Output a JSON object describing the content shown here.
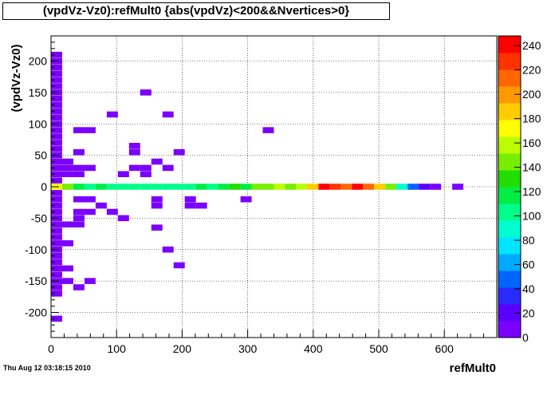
{
  "chart_data": {
    "type": "heatmap",
    "title": "(vpdVz-Vz0):refMult0 {abs(vpdVz)<200&&Nvertices>0}",
    "xlabel": "refMult0",
    "ylabel": "(vpdVz-Vz0)",
    "xlim": [
      0,
      680
    ],
    "ylim": [
      -240,
      240
    ],
    "x_ticks": [
      0,
      100,
      200,
      300,
      400,
      500,
      600
    ],
    "y_ticks": [
      -200,
      -150,
      -100,
      -50,
      0,
      50,
      100,
      150,
      200
    ],
    "z_ticks": [
      0,
      20,
      40,
      60,
      80,
      100,
      120,
      140,
      160,
      180,
      200,
      220,
      240
    ],
    "zlim": [
      0,
      248
    ],
    "grid": true,
    "legend": "right",
    "bin_width_x": 17,
    "bin_height_y": 9.6,
    "cells": [
      {
        "x": 0,
        "y": 210,
        "z": 1
      },
      {
        "x": 0,
        "y": 200,
        "z": 1
      },
      {
        "x": 0,
        "y": 190,
        "z": 1
      },
      {
        "x": 0,
        "y": 180,
        "z": 1
      },
      {
        "x": 0,
        "y": 170,
        "z": 1
      },
      {
        "x": 0,
        "y": 160,
        "z": 1
      },
      {
        "x": 0,
        "y": 150,
        "z": 1
      },
      {
        "x": 0,
        "y": 140,
        "z": 1
      },
      {
        "x": 0,
        "y": 130,
        "z": 1
      },
      {
        "x": 0,
        "y": 120,
        "z": 1
      },
      {
        "x": 0,
        "y": 110,
        "z": 1
      },
      {
        "x": 0,
        "y": 100,
        "z": 1
      },
      {
        "x": 0,
        "y": 90,
        "z": 1
      },
      {
        "x": 0,
        "y": 80,
        "z": 1
      },
      {
        "x": 0,
        "y": 70,
        "z": 1
      },
      {
        "x": 0,
        "y": 60,
        "z": 1
      },
      {
        "x": 0,
        "y": 50,
        "z": 1
      },
      {
        "x": 0,
        "y": 40,
        "z": 1
      },
      {
        "x": 0,
        "y": 30,
        "z": 1
      },
      {
        "x": 0,
        "y": 20,
        "z": 1
      },
      {
        "x": 0,
        "y": 10,
        "z": 1
      },
      {
        "x": 0,
        "y": -10,
        "z": 1
      },
      {
        "x": 0,
        "y": -20,
        "z": 1
      },
      {
        "x": 0,
        "y": -30,
        "z": 1
      },
      {
        "x": 0,
        "y": -40,
        "z": 1
      },
      {
        "x": 0,
        "y": -50,
        "z": 1
      },
      {
        "x": 0,
        "y": -60,
        "z": 1
      },
      {
        "x": 0,
        "y": -70,
        "z": 1
      },
      {
        "x": 0,
        "y": -80,
        "z": 1
      },
      {
        "x": 0,
        "y": -90,
        "z": 1
      },
      {
        "x": 0,
        "y": -100,
        "z": 1
      },
      {
        "x": 0,
        "y": -110,
        "z": 1
      },
      {
        "x": 0,
        "y": -120,
        "z": 1
      },
      {
        "x": 0,
        "y": -130,
        "z": 1
      },
      {
        "x": 0,
        "y": -140,
        "z": 1
      },
      {
        "x": 0,
        "y": -150,
        "z": 1
      },
      {
        "x": 0,
        "y": -160,
        "z": 1
      },
      {
        "x": 0,
        "y": -170,
        "z": 1
      },
      {
        "x": 0,
        "y": -210,
        "z": 1
      },
      {
        "x": 17,
        "y": 40,
        "z": 1
      },
      {
        "x": 17,
        "y": 30,
        "z": 1
      },
      {
        "x": 17,
        "y": 20,
        "z": 1
      },
      {
        "x": 17,
        "y": -60,
        "z": 1
      },
      {
        "x": 17,
        "y": -90,
        "z": 1
      },
      {
        "x": 17,
        "y": -130,
        "z": 1
      },
      {
        "x": 17,
        "y": -150,
        "z": 1
      },
      {
        "x": 34,
        "y": 90,
        "z": 1
      },
      {
        "x": 34,
        "y": 55,
        "z": 1
      },
      {
        "x": 34,
        "y": 30,
        "z": 1
      },
      {
        "x": 34,
        "y": 20,
        "z": 1
      },
      {
        "x": 34,
        "y": -20,
        "z": 1
      },
      {
        "x": 34,
        "y": -40,
        "z": 1
      },
      {
        "x": 34,
        "y": -50,
        "z": 1
      },
      {
        "x": 34,
        "y": -60,
        "z": 1
      },
      {
        "x": 34,
        "y": -160,
        "z": 1
      },
      {
        "x": 51,
        "y": 90,
        "z": 1
      },
      {
        "x": 51,
        "y": 30,
        "z": 1
      },
      {
        "x": 51,
        "y": -20,
        "z": 1
      },
      {
        "x": 51,
        "y": -40,
        "z": 1
      },
      {
        "x": 51,
        "y": -150,
        "z": 1
      },
      {
        "x": 68,
        "y": -30,
        "z": 1
      },
      {
        "x": 85,
        "y": 115,
        "z": 1
      },
      {
        "x": 85,
        "y": -40,
        "z": 1
      },
      {
        "x": 102,
        "y": 20,
        "z": 1
      },
      {
        "x": 102,
        "y": -50,
        "z": 1
      },
      {
        "x": 119,
        "y": 65,
        "z": 1
      },
      {
        "x": 119,
        "y": 55,
        "z": 1
      },
      {
        "x": 119,
        "y": 30,
        "z": 1
      },
      {
        "x": 136,
        "y": 150,
        "z": 1
      },
      {
        "x": 136,
        "y": 30,
        "z": 1
      },
      {
        "x": 136,
        "y": 20,
        "z": 1
      },
      {
        "x": 153,
        "y": 40,
        "z": 1
      },
      {
        "x": 153,
        "y": -20,
        "z": 1
      },
      {
        "x": 153,
        "y": -30,
        "z": 1
      },
      {
        "x": 153,
        "y": -65,
        "z": 1
      },
      {
        "x": 170,
        "y": 115,
        "z": 1
      },
      {
        "x": 170,
        "y": 30,
        "z": 1
      },
      {
        "x": 170,
        "y": -100,
        "z": 1
      },
      {
        "x": 187,
        "y": 55,
        "z": 1
      },
      {
        "x": 187,
        "y": -125,
        "z": 1
      },
      {
        "x": 204,
        "y": -20,
        "z": 1
      },
      {
        "x": 204,
        "y": -30,
        "z": 1
      },
      {
        "x": 221,
        "y": -30,
        "z": 1
      },
      {
        "x": 289,
        "y": -20,
        "z": 1
      },
      {
        "x": 323,
        "y": 90,
        "z": 1
      },
      {
        "x": 0,
        "y": 0,
        "z": 170
      },
      {
        "x": 17,
        "y": 0,
        "z": 150
      },
      {
        "x": 34,
        "y": 0,
        "z": 120
      },
      {
        "x": 51,
        "y": 0,
        "z": 110
      },
      {
        "x": 68,
        "y": 0,
        "z": 120
      },
      {
        "x": 85,
        "y": 0,
        "z": 100
      },
      {
        "x": 102,
        "y": 0,
        "z": 110
      },
      {
        "x": 119,
        "y": 0,
        "z": 100
      },
      {
        "x": 136,
        "y": 0,
        "z": 110
      },
      {
        "x": 153,
        "y": 0,
        "z": 100
      },
      {
        "x": 170,
        "y": 0,
        "z": 100
      },
      {
        "x": 187,
        "y": 0,
        "z": 100
      },
      {
        "x": 204,
        "y": 0,
        "z": 110
      },
      {
        "x": 221,
        "y": 0,
        "z": 115
      },
      {
        "x": 238,
        "y": 0,
        "z": 110
      },
      {
        "x": 255,
        "y": 0,
        "z": 120
      },
      {
        "x": 272,
        "y": 0,
        "z": 130
      },
      {
        "x": 289,
        "y": 0,
        "z": 120
      },
      {
        "x": 306,
        "y": 0,
        "z": 140
      },
      {
        "x": 323,
        "y": 0,
        "z": 145
      },
      {
        "x": 340,
        "y": 0,
        "z": 160
      },
      {
        "x": 357,
        "y": 0,
        "z": 150
      },
      {
        "x": 374,
        "y": 0,
        "z": 165
      },
      {
        "x": 391,
        "y": 0,
        "z": 185
      },
      {
        "x": 408,
        "y": 0,
        "z": 245
      },
      {
        "x": 425,
        "y": 0,
        "z": 225
      },
      {
        "x": 442,
        "y": 0,
        "z": 210
      },
      {
        "x": 459,
        "y": 0,
        "z": 240
      },
      {
        "x": 476,
        "y": 0,
        "z": 220
      },
      {
        "x": 493,
        "y": 0,
        "z": 185
      },
      {
        "x": 510,
        "y": 0,
        "z": 145
      },
      {
        "x": 527,
        "y": 0,
        "z": 90
      },
      {
        "x": 544,
        "y": 0,
        "z": 50
      },
      {
        "x": 561,
        "y": 0,
        "z": 15
      },
      {
        "x": 578,
        "y": 0,
        "z": 10
      },
      {
        "x": 612,
        "y": 0,
        "z": 5
      }
    ]
  },
  "footer": {
    "timestamp": "Thu Aug 12 03:18:15 2010"
  },
  "colors": {
    "palette": [
      "#7a00ff",
      "#5a00ff",
      "#2a2bff",
      "#0066ff",
      "#00aaff",
      "#00e5ff",
      "#00ffd0",
      "#00ff8a",
      "#00ee44",
      "#22dd00",
      "#77ee00",
      "#bbff00",
      "#ffff00",
      "#ffcc00",
      "#ff9900",
      "#ff6600",
      "#ff3300",
      "#ff0000"
    ]
  }
}
